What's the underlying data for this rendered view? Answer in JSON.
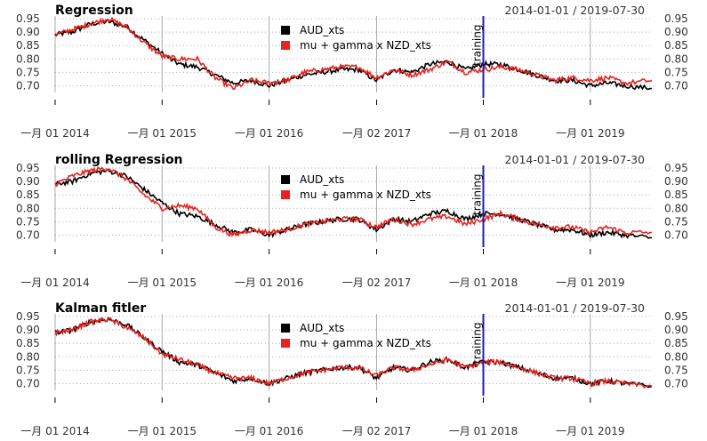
{
  "colors": {
    "aud": "#000000",
    "fit": "#e8231f",
    "training_line": "#1f1fbf",
    "grid": "#a8a8a8"
  },
  "chart_data": [
    {
      "type": "line",
      "title": "Regression",
      "date_range": "2014-01-01 / 2019-07-30",
      "x_tick_labels": [
        "一月 01 2014",
        "一月 01 2015",
        "一月 01 2016",
        "一月 02 2017",
        "一月 01 2018",
        "一月 01 2019"
      ],
      "x_tick_dates": [
        "2014-01-01",
        "2015-01-01",
        "2016-01-01",
        "2017-01-02",
        "2018-01-01",
        "2019-01-01"
      ],
      "x_range": [
        "2014-01-01",
        "2019-07-30"
      ],
      "ylim": [
        0.675,
        0.96
      ],
      "y_ticks": [
        "0.95",
        "0.90",
        "0.85",
        "0.80",
        "0.75",
        "0.70"
      ],
      "annotation": "training",
      "training_date": "2018-01-01",
      "legend": [
        "AUD_xts",
        "mu + gamma x NZD_xts"
      ],
      "legend_position": "top-center",
      "grid": true,
      "series": [
        {
          "name": "AUD_xts",
          "x": [
            "2014-01-01",
            "2014-03-01",
            "2014-05-01",
            "2014-07-01",
            "2014-09-01",
            "2014-11-01",
            "2015-01-01",
            "2015-03-01",
            "2015-05-01",
            "2015-07-01",
            "2015-09-01",
            "2015-11-01",
            "2016-01-01",
            "2016-03-01",
            "2016-05-01",
            "2016-07-01",
            "2016-09-01",
            "2016-11-01",
            "2017-01-01",
            "2017-03-01",
            "2017-05-01",
            "2017-07-01",
            "2017-09-01",
            "2017-11-01",
            "2018-01-01",
            "2018-03-01",
            "2018-05-01",
            "2018-07-01",
            "2018-09-01",
            "2018-11-01",
            "2019-01-01",
            "2019-03-01",
            "2019-05-01",
            "2019-07-30"
          ],
          "values": [
            0.89,
            0.9,
            0.93,
            0.94,
            0.92,
            0.87,
            0.82,
            0.78,
            0.77,
            0.74,
            0.71,
            0.72,
            0.7,
            0.72,
            0.74,
            0.75,
            0.76,
            0.76,
            0.72,
            0.76,
            0.75,
            0.78,
            0.79,
            0.76,
            0.78,
            0.78,
            0.76,
            0.74,
            0.72,
            0.72,
            0.7,
            0.71,
            0.7,
            0.69
          ]
        },
        {
          "name": "mu + gamma x NZD_xts",
          "x": [
            "2014-01-01",
            "2014-03-01",
            "2014-05-01",
            "2014-07-01",
            "2014-09-01",
            "2014-11-01",
            "2015-01-01",
            "2015-03-01",
            "2015-05-01",
            "2015-07-01",
            "2015-09-01",
            "2015-11-01",
            "2016-01-01",
            "2016-03-01",
            "2016-05-01",
            "2016-07-01",
            "2016-09-01",
            "2016-11-01",
            "2017-01-01",
            "2017-03-01",
            "2017-05-01",
            "2017-07-01",
            "2017-09-01",
            "2017-11-01",
            "2018-01-01",
            "2018-03-01",
            "2018-05-01",
            "2018-07-01",
            "2018-09-01",
            "2018-11-01",
            "2019-01-01",
            "2019-03-01",
            "2019-05-01",
            "2019-07-30"
          ],
          "values": [
            0.89,
            0.91,
            0.93,
            0.95,
            0.92,
            0.86,
            0.81,
            0.8,
            0.8,
            0.73,
            0.69,
            0.72,
            0.71,
            0.72,
            0.75,
            0.76,
            0.77,
            0.77,
            0.73,
            0.76,
            0.74,
            0.76,
            0.79,
            0.75,
            0.76,
            0.77,
            0.76,
            0.74,
            0.72,
            0.73,
            0.72,
            0.73,
            0.71,
            0.72
          ]
        }
      ]
    },
    {
      "type": "line",
      "title": "rolling Regression",
      "date_range": "2014-01-01 / 2019-07-30",
      "x_tick_labels": [
        "一月 01 2014",
        "一月 01 2015",
        "一月 01 2016",
        "一月 02 2017",
        "一月 01 2018",
        "一月 01 2019"
      ],
      "x_tick_dates": [
        "2014-01-01",
        "2015-01-01",
        "2016-01-01",
        "2017-01-02",
        "2018-01-01",
        "2019-01-01"
      ],
      "x_range": [
        "2014-01-01",
        "2019-07-30"
      ],
      "ylim": [
        0.675,
        0.96
      ],
      "y_ticks": [
        "0.95",
        "0.90",
        "0.85",
        "0.80",
        "0.75",
        "0.70"
      ],
      "annotation": "training",
      "training_date": "2018-01-01",
      "legend": [
        "AUD_xts",
        "mu + gamma x NZD_xts"
      ],
      "legend_position": "top-center",
      "grid": true,
      "series": [
        {
          "name": "AUD_xts",
          "x": [
            "2014-01-01",
            "2014-03-01",
            "2014-05-01",
            "2014-07-01",
            "2014-09-01",
            "2014-11-01",
            "2015-01-01",
            "2015-03-01",
            "2015-05-01",
            "2015-07-01",
            "2015-09-01",
            "2015-11-01",
            "2016-01-01",
            "2016-03-01",
            "2016-05-01",
            "2016-07-01",
            "2016-09-01",
            "2016-11-01",
            "2017-01-01",
            "2017-03-01",
            "2017-05-01",
            "2017-07-01",
            "2017-09-01",
            "2017-11-01",
            "2018-01-01",
            "2018-03-01",
            "2018-05-01",
            "2018-07-01",
            "2018-09-01",
            "2018-11-01",
            "2019-01-01",
            "2019-03-01",
            "2019-05-01",
            "2019-07-30"
          ],
          "values": [
            0.89,
            0.9,
            0.93,
            0.94,
            0.92,
            0.87,
            0.82,
            0.78,
            0.77,
            0.74,
            0.71,
            0.72,
            0.7,
            0.72,
            0.74,
            0.75,
            0.76,
            0.76,
            0.72,
            0.76,
            0.75,
            0.78,
            0.79,
            0.76,
            0.78,
            0.78,
            0.76,
            0.74,
            0.72,
            0.72,
            0.7,
            0.71,
            0.7,
            0.69
          ]
        },
        {
          "name": "mu + gamma x NZD_xts",
          "x": [
            "2014-01-01",
            "2014-03-01",
            "2014-05-01",
            "2014-07-01",
            "2014-09-01",
            "2014-11-01",
            "2015-01-01",
            "2015-03-01",
            "2015-05-01",
            "2015-07-01",
            "2015-09-01",
            "2015-11-01",
            "2016-01-01",
            "2016-03-01",
            "2016-05-01",
            "2016-07-01",
            "2016-09-01",
            "2016-11-01",
            "2017-01-01",
            "2017-03-01",
            "2017-05-01",
            "2017-07-01",
            "2017-09-01",
            "2017-11-01",
            "2018-01-01",
            "2018-03-01",
            "2018-05-01",
            "2018-07-01",
            "2018-09-01",
            "2018-11-01",
            "2019-01-01",
            "2019-03-01",
            "2019-05-01",
            "2019-07-30"
          ],
          "values": [
            0.89,
            0.92,
            0.94,
            0.95,
            0.91,
            0.85,
            0.8,
            0.81,
            0.8,
            0.73,
            0.7,
            0.72,
            0.71,
            0.72,
            0.74,
            0.75,
            0.76,
            0.76,
            0.73,
            0.76,
            0.74,
            0.76,
            0.77,
            0.74,
            0.76,
            0.78,
            0.76,
            0.74,
            0.73,
            0.73,
            0.71,
            0.73,
            0.71,
            0.71
          ]
        }
      ]
    },
    {
      "type": "line",
      "title": "Kalman fitler",
      "date_range": "2014-01-01 / 2019-07-30",
      "x_tick_labels": [
        "一月 01 2014",
        "一月 01 2015",
        "一月 01 2016",
        "一月 02 2017",
        "一月 01 2018",
        "一月 01 2019"
      ],
      "x_tick_dates": [
        "2014-01-01",
        "2015-01-01",
        "2016-01-01",
        "2017-01-02",
        "2018-01-01",
        "2019-01-01"
      ],
      "x_range": [
        "2014-01-01",
        "2019-07-30"
      ],
      "ylim": [
        0.675,
        0.96
      ],
      "y_ticks": [
        "0.95",
        "0.90",
        "0.85",
        "0.80",
        "0.75",
        "0.70"
      ],
      "annotation": "training",
      "training_date": "2018-01-01",
      "legend": [
        "AUD_xts",
        "mu + gamma x NZD_xts"
      ],
      "legend_position": "top-center",
      "grid": true,
      "series": [
        {
          "name": "AUD_xts",
          "x": [
            "2014-01-01",
            "2014-03-01",
            "2014-05-01",
            "2014-07-01",
            "2014-09-01",
            "2014-11-01",
            "2015-01-01",
            "2015-03-01",
            "2015-05-01",
            "2015-07-01",
            "2015-09-01",
            "2015-11-01",
            "2016-01-01",
            "2016-03-01",
            "2016-05-01",
            "2016-07-01",
            "2016-09-01",
            "2016-11-01",
            "2017-01-01",
            "2017-03-01",
            "2017-05-01",
            "2017-07-01",
            "2017-09-01",
            "2017-11-01",
            "2018-01-01",
            "2018-03-01",
            "2018-05-01",
            "2018-07-01",
            "2018-09-01",
            "2018-11-01",
            "2019-01-01",
            "2019-03-01",
            "2019-05-01",
            "2019-07-30"
          ],
          "values": [
            0.89,
            0.9,
            0.93,
            0.94,
            0.92,
            0.87,
            0.82,
            0.78,
            0.77,
            0.74,
            0.71,
            0.72,
            0.7,
            0.72,
            0.74,
            0.75,
            0.76,
            0.76,
            0.72,
            0.76,
            0.75,
            0.78,
            0.79,
            0.76,
            0.78,
            0.78,
            0.76,
            0.74,
            0.72,
            0.72,
            0.7,
            0.71,
            0.7,
            0.69
          ]
        },
        {
          "name": "mu + gamma x NZD_xts",
          "x": [
            "2014-01-01",
            "2014-03-01",
            "2014-05-01",
            "2014-07-01",
            "2014-09-01",
            "2014-11-01",
            "2015-01-01",
            "2015-03-01",
            "2015-05-01",
            "2015-07-01",
            "2015-09-01",
            "2015-11-01",
            "2016-01-01",
            "2016-03-01",
            "2016-05-01",
            "2016-07-01",
            "2016-09-01",
            "2016-11-01",
            "2017-01-01",
            "2017-03-01",
            "2017-05-01",
            "2017-07-01",
            "2017-09-01",
            "2017-11-01",
            "2018-01-01",
            "2018-03-01",
            "2018-05-01",
            "2018-07-01",
            "2018-09-01",
            "2018-11-01",
            "2019-01-01",
            "2019-03-01",
            "2019-05-01",
            "2019-07-30"
          ],
          "values": [
            0.89,
            0.9,
            0.93,
            0.94,
            0.91,
            0.87,
            0.81,
            0.79,
            0.77,
            0.74,
            0.72,
            0.72,
            0.7,
            0.72,
            0.74,
            0.75,
            0.76,
            0.76,
            0.73,
            0.76,
            0.75,
            0.77,
            0.79,
            0.76,
            0.78,
            0.78,
            0.76,
            0.74,
            0.72,
            0.72,
            0.7,
            0.71,
            0.7,
            0.69
          ]
        }
      ]
    }
  ]
}
